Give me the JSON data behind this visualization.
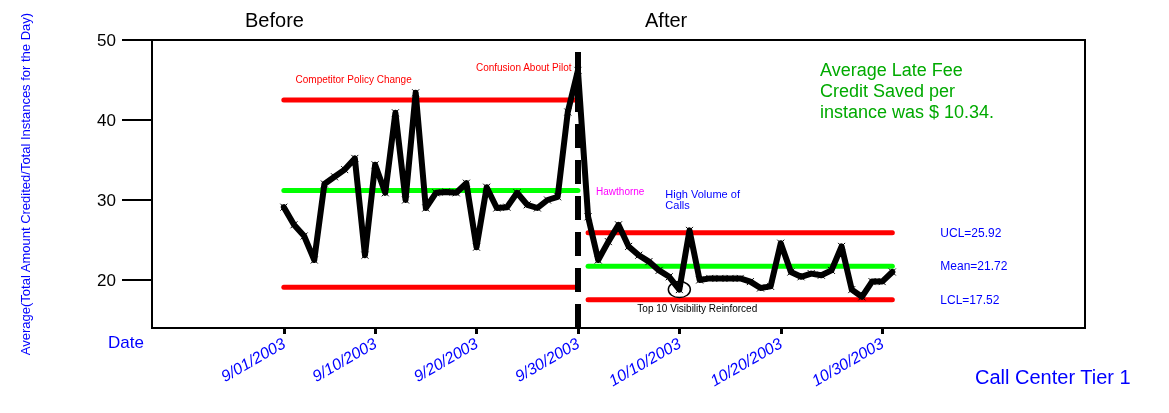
{
  "chart_data": {
    "type": "line",
    "xlabel": "Date",
    "ylabel": "Average(Total Amount Credited/Total Instances for the Day)",
    "xlim": [
      "2003-08-19",
      "2003-11-19"
    ],
    "xticks": [
      {
        "value": "2003-09-01",
        "label": "9/01/2003"
      },
      {
        "value": "2003-09-10",
        "label": "9/10/2003"
      },
      {
        "value": "2003-09-20",
        "label": "9/20/2003"
      },
      {
        "value": "2003-09-30",
        "label": "9/30/2003"
      },
      {
        "value": "2003-10-10",
        "label": "10/10/2003"
      },
      {
        "value": "2003-10-20",
        "label": "10/20/2003"
      },
      {
        "value": "2003-10-30",
        "label": "10/30/2003"
      }
    ],
    "ylim": [
      14,
      50
    ],
    "yticks": [
      20,
      30,
      40,
      50
    ],
    "grid": false,
    "legend": false,
    "marker": "cross",
    "line_style": "solid",
    "x": [
      "2003-09-01",
      "2003-09-02",
      "2003-09-03",
      "2003-09-04",
      "2003-09-05",
      "2003-09-06",
      "2003-09-07",
      "2003-09-08",
      "2003-09-09",
      "2003-09-10",
      "2003-09-11",
      "2003-09-12",
      "2003-09-13",
      "2003-09-14",
      "2003-09-15",
      "2003-09-16",
      "2003-09-17",
      "2003-09-18",
      "2003-09-19",
      "2003-09-20",
      "2003-09-21",
      "2003-09-22",
      "2003-09-23",
      "2003-09-24",
      "2003-09-25",
      "2003-09-26",
      "2003-09-27",
      "2003-09-28",
      "2003-09-29",
      "2003-09-30",
      "2003-10-01",
      "2003-10-02",
      "2003-10-03",
      "2003-10-04",
      "2003-10-05",
      "2003-10-06",
      "2003-10-07",
      "2003-10-08",
      "2003-10-09",
      "2003-10-10",
      "2003-10-11",
      "2003-10-12",
      "2003-10-13",
      "2003-10-14",
      "2003-10-15",
      "2003-10-16",
      "2003-10-17",
      "2003-10-18",
      "2003-10-19",
      "2003-10-20",
      "2003-10-21",
      "2003-10-22",
      "2003-10-23",
      "2003-10-24",
      "2003-10-25",
      "2003-10-26",
      "2003-10-27",
      "2003-10-28",
      "2003-10-29",
      "2003-10-30",
      "2003-10-31"
    ],
    "series": [
      {
        "color": "#000000",
        "values": [
          29.1,
          26.9,
          25.5,
          22.5,
          32.0,
          32.9,
          33.8,
          35.2,
          23.1,
          34.4,
          30.9,
          40.9,
          30.0,
          43.4,
          29.0,
          30.9,
          31.0,
          30.9,
          32.1,
          24.1,
          31.6,
          29.0,
          29.1,
          30.9,
          29.4,
          29.0,
          30.0,
          30.4,
          41.0,
          46.2,
          27.9,
          22.5,
          24.8,
          26.9,
          24.2,
          23.1,
          22.3,
          21.2,
          20.4,
          18.8,
          26.2,
          20.0,
          20.2,
          20.2,
          20.2,
          20.2,
          19.8,
          19.0,
          19.2,
          24.6,
          21.0,
          20.4,
          20.8,
          20.6,
          21.2,
          24.2,
          18.8,
          17.9,
          19.8,
          19.8,
          21.0
        ]
      },
      {
        "type": "line",
        "marker": "none",
        "color": "#ff0000",
        "x": [
          "2003-09-01",
          "2003-09-30"
        ],
        "values": [
          42.5,
          42.5
        ]
      },
      {
        "type": "line",
        "marker": "none",
        "color": "#00ff00",
        "x": [
          "2003-09-01",
          "2003-09-30"
        ],
        "values": [
          31.2,
          31.2
        ]
      },
      {
        "type": "line",
        "marker": "none",
        "color": "#ff0000",
        "x": [
          "2003-09-01",
          "2003-09-30"
        ],
        "values": [
          19.1,
          19.1
        ]
      },
      {
        "type": "line",
        "marker": "none",
        "name": "UCL=25.92",
        "color": "#ff0000",
        "x": [
          "2003-10-01",
          "2003-10-31"
        ],
        "values": [
          25.92,
          25.92
        ]
      },
      {
        "type": "line",
        "marker": "none",
        "name": "Mean=21.72",
        "color": "#00ff00",
        "x": [
          "2003-10-01",
          "2003-10-31"
        ],
        "values": [
          21.72,
          21.72
        ]
      },
      {
        "type": "line",
        "marker": "none",
        "name": "LCL=17.52",
        "color": "#ff0000",
        "x": [
          "2003-10-01",
          "2003-10-31"
        ],
        "values": [
          17.52,
          17.52
        ]
      }
    ],
    "ref_lines": [
      {
        "axis": "x",
        "value": "2003-09-30",
        "color": "#000000",
        "line_style": "dashed"
      }
    ],
    "annotations": [
      "Before",
      "After",
      {
        "text": "Competitor Policy Change",
        "x": "2003-09-13",
        "y": 43.4
      },
      {
        "text": "Confusion About Pilot",
        "x": "2003-09-30",
        "y": 46.2
      },
      {
        "text": "Hawthorne",
        "x": "2003-10-01",
        "y": 27.9
      },
      {
        "text": "High Volume of Calls",
        "x": "2003-10-10",
        "y": 26.2
      },
      {
        "text": "Top 10 Visibility Reinforced",
        "x": "2003-10-10",
        "y": 18.8
      },
      "Average Late Fee Credit Saved per instance was $ 10.34.",
      "Call Center Tier 1"
    ]
  }
}
